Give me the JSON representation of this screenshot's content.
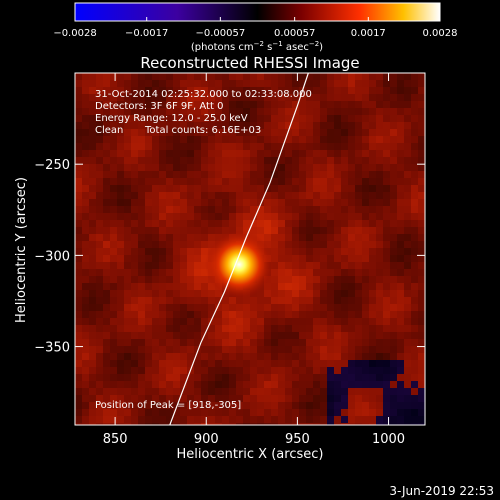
{
  "chart_data": {
    "type": "heatmap",
    "title": "Reconstructed RHESSI Image",
    "xlabel": "Heliocentric X (arcsec)",
    "ylabel": "Heliocentric Y (arcsec)",
    "xlim": [
      828,
      1020
    ],
    "ylim": [
      -393,
      -200
    ],
    "x_ticks": [
      850,
      900,
      950,
      1000
    ],
    "x_tick_labels": [
      "850",
      "900",
      "950",
      "1000"
    ],
    "y_ticks": [
      -250,
      -300,
      -350
    ],
    "y_tick_labels": [
      "−250",
      "−300",
      "−350"
    ],
    "colorbar": {
      "range": [
        -0.0028,
        0.0028
      ],
      "tick_values": [
        -0.0028,
        -0.0017,
        -0.00057,
        0.00057,
        0.0017,
        0.0028
      ],
      "tick_labels": [
        "−0.0028",
        "−0.0017",
        "−0.00057",
        "0.00057",
        "0.0017",
        "0.0028"
      ],
      "units_label": "(photons cm",
      "units_exp1": "−2",
      "units_mid": " s",
      "units_exp2": "−1",
      "units_mid2": " asec",
      "units_exp3": "−2",
      "units_end": ")"
    },
    "annotations": {
      "time_range": "31-Oct-2014 02:25:32.000 to 02:33:08.000",
      "detectors": "Detectors: 3F 6F 9F, Att 0",
      "energy_range": "Energy Range: 12.0 - 25.0 keV",
      "method": "Clean",
      "total_counts": "Total counts: 6.16E+03",
      "peak_position": "Position of Peak = [918,-305]"
    },
    "peak": {
      "x": 918,
      "y": -305
    },
    "limb_curve": [
      [
        880,
        -393
      ],
      [
        897,
        -348
      ],
      [
        910,
        -320
      ],
      [
        922,
        -290
      ],
      [
        935,
        -260
      ],
      [
        950,
        -218
      ],
      [
        956,
        -200
      ]
    ],
    "colors": {
      "limb_line": "#ffffff",
      "background": "#000000"
    }
  },
  "footer": {
    "date": "3-Jun-2019 22:53"
  }
}
